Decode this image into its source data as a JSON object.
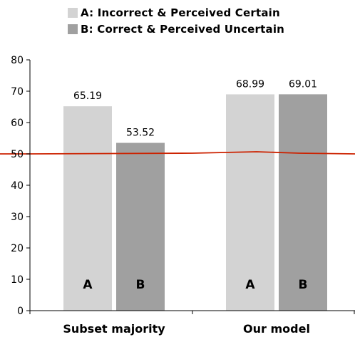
{
  "chart_data": {
    "type": "bar",
    "categories": [
      "Subset majority",
      "Our model"
    ],
    "series": [
      {
        "name": "A: Incorrect & Perceived Certain",
        "values": [
          65.19,
          68.99
        ],
        "color": "#d3d3d3",
        "bar_label": "A"
      },
      {
        "name": "B: Correct & Perceived Uncertain",
        "values": [
          53.52,
          69.01
        ],
        "color": "#a0a0a0",
        "bar_label": "B"
      }
    ],
    "data_labels": [
      [
        "65.19",
        "68.99"
      ],
      [
        "53.52",
        "69.01"
      ]
    ],
    "reference_line": {
      "value": 50,
      "color": "#cc2200"
    },
    "ylim": [
      0,
      80
    ],
    "yticks": [
      0,
      10,
      20,
      30,
      40,
      50,
      60,
      70,
      80
    ],
    "grid": false,
    "legend_position": "top"
  }
}
